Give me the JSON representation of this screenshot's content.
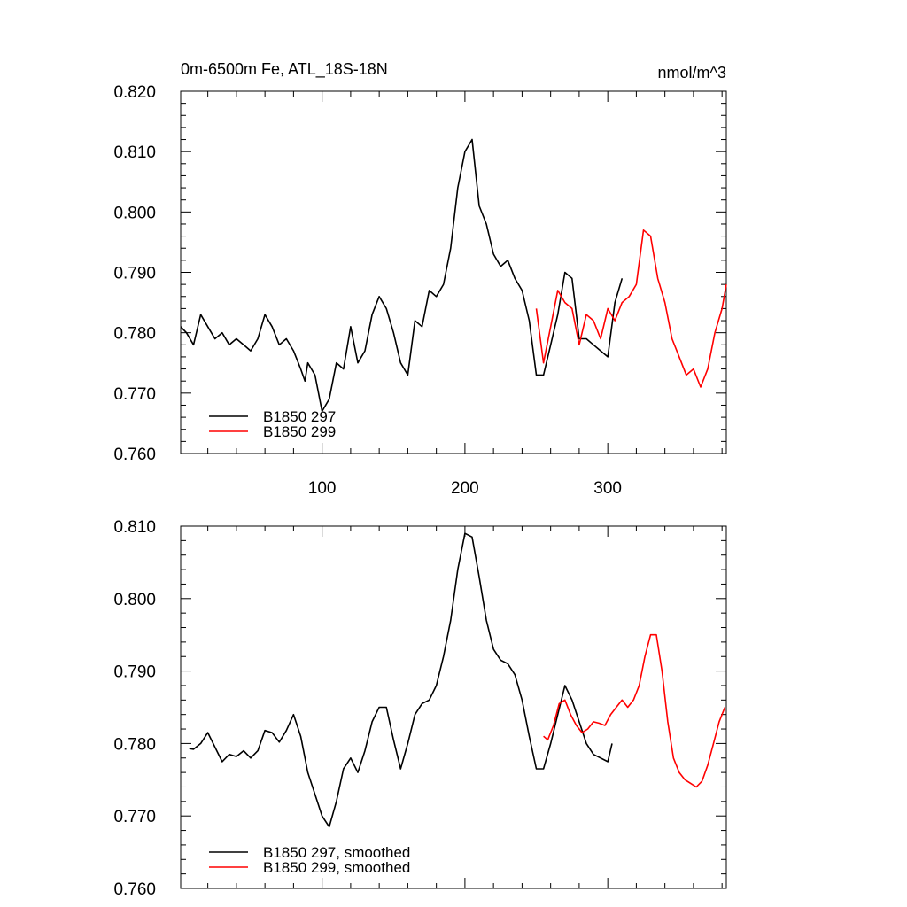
{
  "title_left": "0m-6500m Fe, ATL_18S-18N",
  "title_right": "nmol/m^3",
  "chart_data": [
    {
      "type": "line",
      "panel": "raw",
      "title": "0m-6500m Fe, ATL_18S-18N",
      "units": "nmol/m^3",
      "xlim": [
        1,
        383
      ],
      "ylim": [
        0.76,
        0.82
      ],
      "x_ticks": [
        100,
        200,
        300
      ],
      "y_ticks": [
        0.76,
        0.77,
        0.78,
        0.79,
        0.8,
        0.81,
        0.82
      ],
      "y_tick_labels": [
        "0.760",
        "0.770",
        "0.780",
        "0.790",
        "0.800",
        "0.810",
        "0.820"
      ],
      "legend_position": "bottom-left",
      "series": [
        {
          "name": "B1850 297",
          "color": "#000000",
          "x": [
            1,
            5,
            10,
            15,
            20,
            25,
            30,
            35,
            40,
            45,
            50,
            55,
            60,
            65,
            70,
            75,
            80,
            85,
            88,
            90,
            95,
            100,
            105,
            110,
            115,
            120,
            125,
            130,
            135,
            140,
            145,
            150,
            155,
            160,
            165,
            170,
            175,
            180,
            185,
            190,
            195,
            200,
            205,
            210,
            215,
            220,
            225,
            230,
            235,
            240,
            245,
            250,
            255,
            260,
            265,
            270,
            275,
            280,
            285,
            290,
            295,
            300,
            305,
            310
          ],
          "values": [
            0.781,
            0.78,
            0.778,
            0.783,
            0.781,
            0.779,
            0.78,
            0.778,
            0.779,
            0.778,
            0.777,
            0.779,
            0.783,
            0.781,
            0.778,
            0.779,
            0.777,
            0.774,
            0.772,
            0.775,
            0.773,
            0.767,
            0.769,
            0.775,
            0.774,
            0.781,
            0.775,
            0.777,
            0.783,
            0.786,
            0.784,
            0.78,
            0.775,
            0.773,
            0.782,
            0.781,
            0.787,
            0.786,
            0.788,
            0.794,
            0.804,
            0.81,
            0.812,
            0.801,
            0.798,
            0.793,
            0.791,
            0.792,
            0.789,
            0.787,
            0.782,
            0.773,
            0.773,
            0.778,
            0.783,
            0.79,
            0.789,
            0.779,
            0.779,
            0.778,
            0.777,
            0.776,
            0.785,
            0.789
          ]
        },
        {
          "name": "B1850 299",
          "color": "#ff0000",
          "x": [
            250,
            255,
            260,
            265,
            270,
            275,
            280,
            285,
            290,
            295,
            300,
            305,
            310,
            315,
            320,
            325,
            330,
            335,
            340,
            345,
            350,
            355,
            360,
            365,
            370,
            375,
            380,
            383
          ],
          "values": [
            0.784,
            0.775,
            0.781,
            0.787,
            0.785,
            0.784,
            0.778,
            0.783,
            0.782,
            0.779,
            0.784,
            0.782,
            0.785,
            0.786,
            0.788,
            0.797,
            0.796,
            0.789,
            0.785,
            0.779,
            0.776,
            0.773,
            0.774,
            0.771,
            0.774,
            0.78,
            0.784,
            0.788
          ]
        }
      ]
    },
    {
      "type": "line",
      "panel": "smoothed",
      "xlim": [
        1,
        383
      ],
      "ylim": [
        0.76,
        0.81
      ],
      "x_ticks": [
        100,
        200,
        300
      ],
      "y_ticks": [
        0.76,
        0.77,
        0.78,
        0.79,
        0.8,
        0.81
      ],
      "y_tick_labels": [
        "0.760",
        "0.770",
        "0.780",
        "0.790",
        "0.800",
        "0.810"
      ],
      "legend_position": "bottom-left",
      "series": [
        {
          "name": "B1850 297, smoothed",
          "color": "#000000",
          "x": [
            7,
            10,
            15,
            20,
            25,
            30,
            35,
            40,
            45,
            50,
            55,
            60,
            65,
            70,
            75,
            80,
            85,
            90,
            95,
            100,
            105,
            110,
            115,
            120,
            125,
            130,
            135,
            140,
            145,
            150,
            155,
            160,
            165,
            170,
            175,
            180,
            185,
            190,
            195,
            200,
            205,
            210,
            215,
            220,
            225,
            230,
            235,
            240,
            245,
            250,
            255,
            260,
            265,
            270,
            275,
            280,
            285,
            290,
            295,
            300,
            303
          ],
          "values": [
            0.7793,
            0.7792,
            0.78,
            0.7815,
            0.7795,
            0.7775,
            0.7785,
            0.7782,
            0.779,
            0.778,
            0.779,
            0.7818,
            0.7815,
            0.7802,
            0.7818,
            0.784,
            0.781,
            0.776,
            0.773,
            0.77,
            0.7685,
            0.772,
            0.7765,
            0.778,
            0.776,
            0.779,
            0.783,
            0.785,
            0.785,
            0.7805,
            0.7765,
            0.78,
            0.784,
            0.7855,
            0.786,
            0.788,
            0.792,
            0.797,
            0.804,
            0.809,
            0.8085,
            0.803,
            0.797,
            0.793,
            0.7915,
            0.791,
            0.7895,
            0.786,
            0.781,
            0.7765,
            0.7765,
            0.78,
            0.784,
            0.788,
            0.786,
            0.783,
            0.78,
            0.7785,
            0.778,
            0.7775,
            0.78
          ]
        },
        {
          "name": "B1850 299, smoothed",
          "color": "#ff0000",
          "x": [
            255,
            258,
            262,
            266,
            270,
            274,
            278,
            282,
            286,
            290,
            294,
            298,
            302,
            306,
            310,
            314,
            318,
            322,
            326,
            330,
            334,
            338,
            342,
            346,
            350,
            354,
            358,
            362,
            366,
            370,
            374,
            378,
            382
          ],
          "values": [
            0.781,
            0.7805,
            0.7825,
            0.7855,
            0.786,
            0.784,
            0.7825,
            0.7815,
            0.782,
            0.783,
            0.7828,
            0.7825,
            0.784,
            0.785,
            0.786,
            0.785,
            0.786,
            0.788,
            0.792,
            0.795,
            0.795,
            0.79,
            0.783,
            0.778,
            0.776,
            0.775,
            0.7745,
            0.774,
            0.7748,
            0.777,
            0.78,
            0.783,
            0.785
          ]
        }
      ]
    }
  ]
}
